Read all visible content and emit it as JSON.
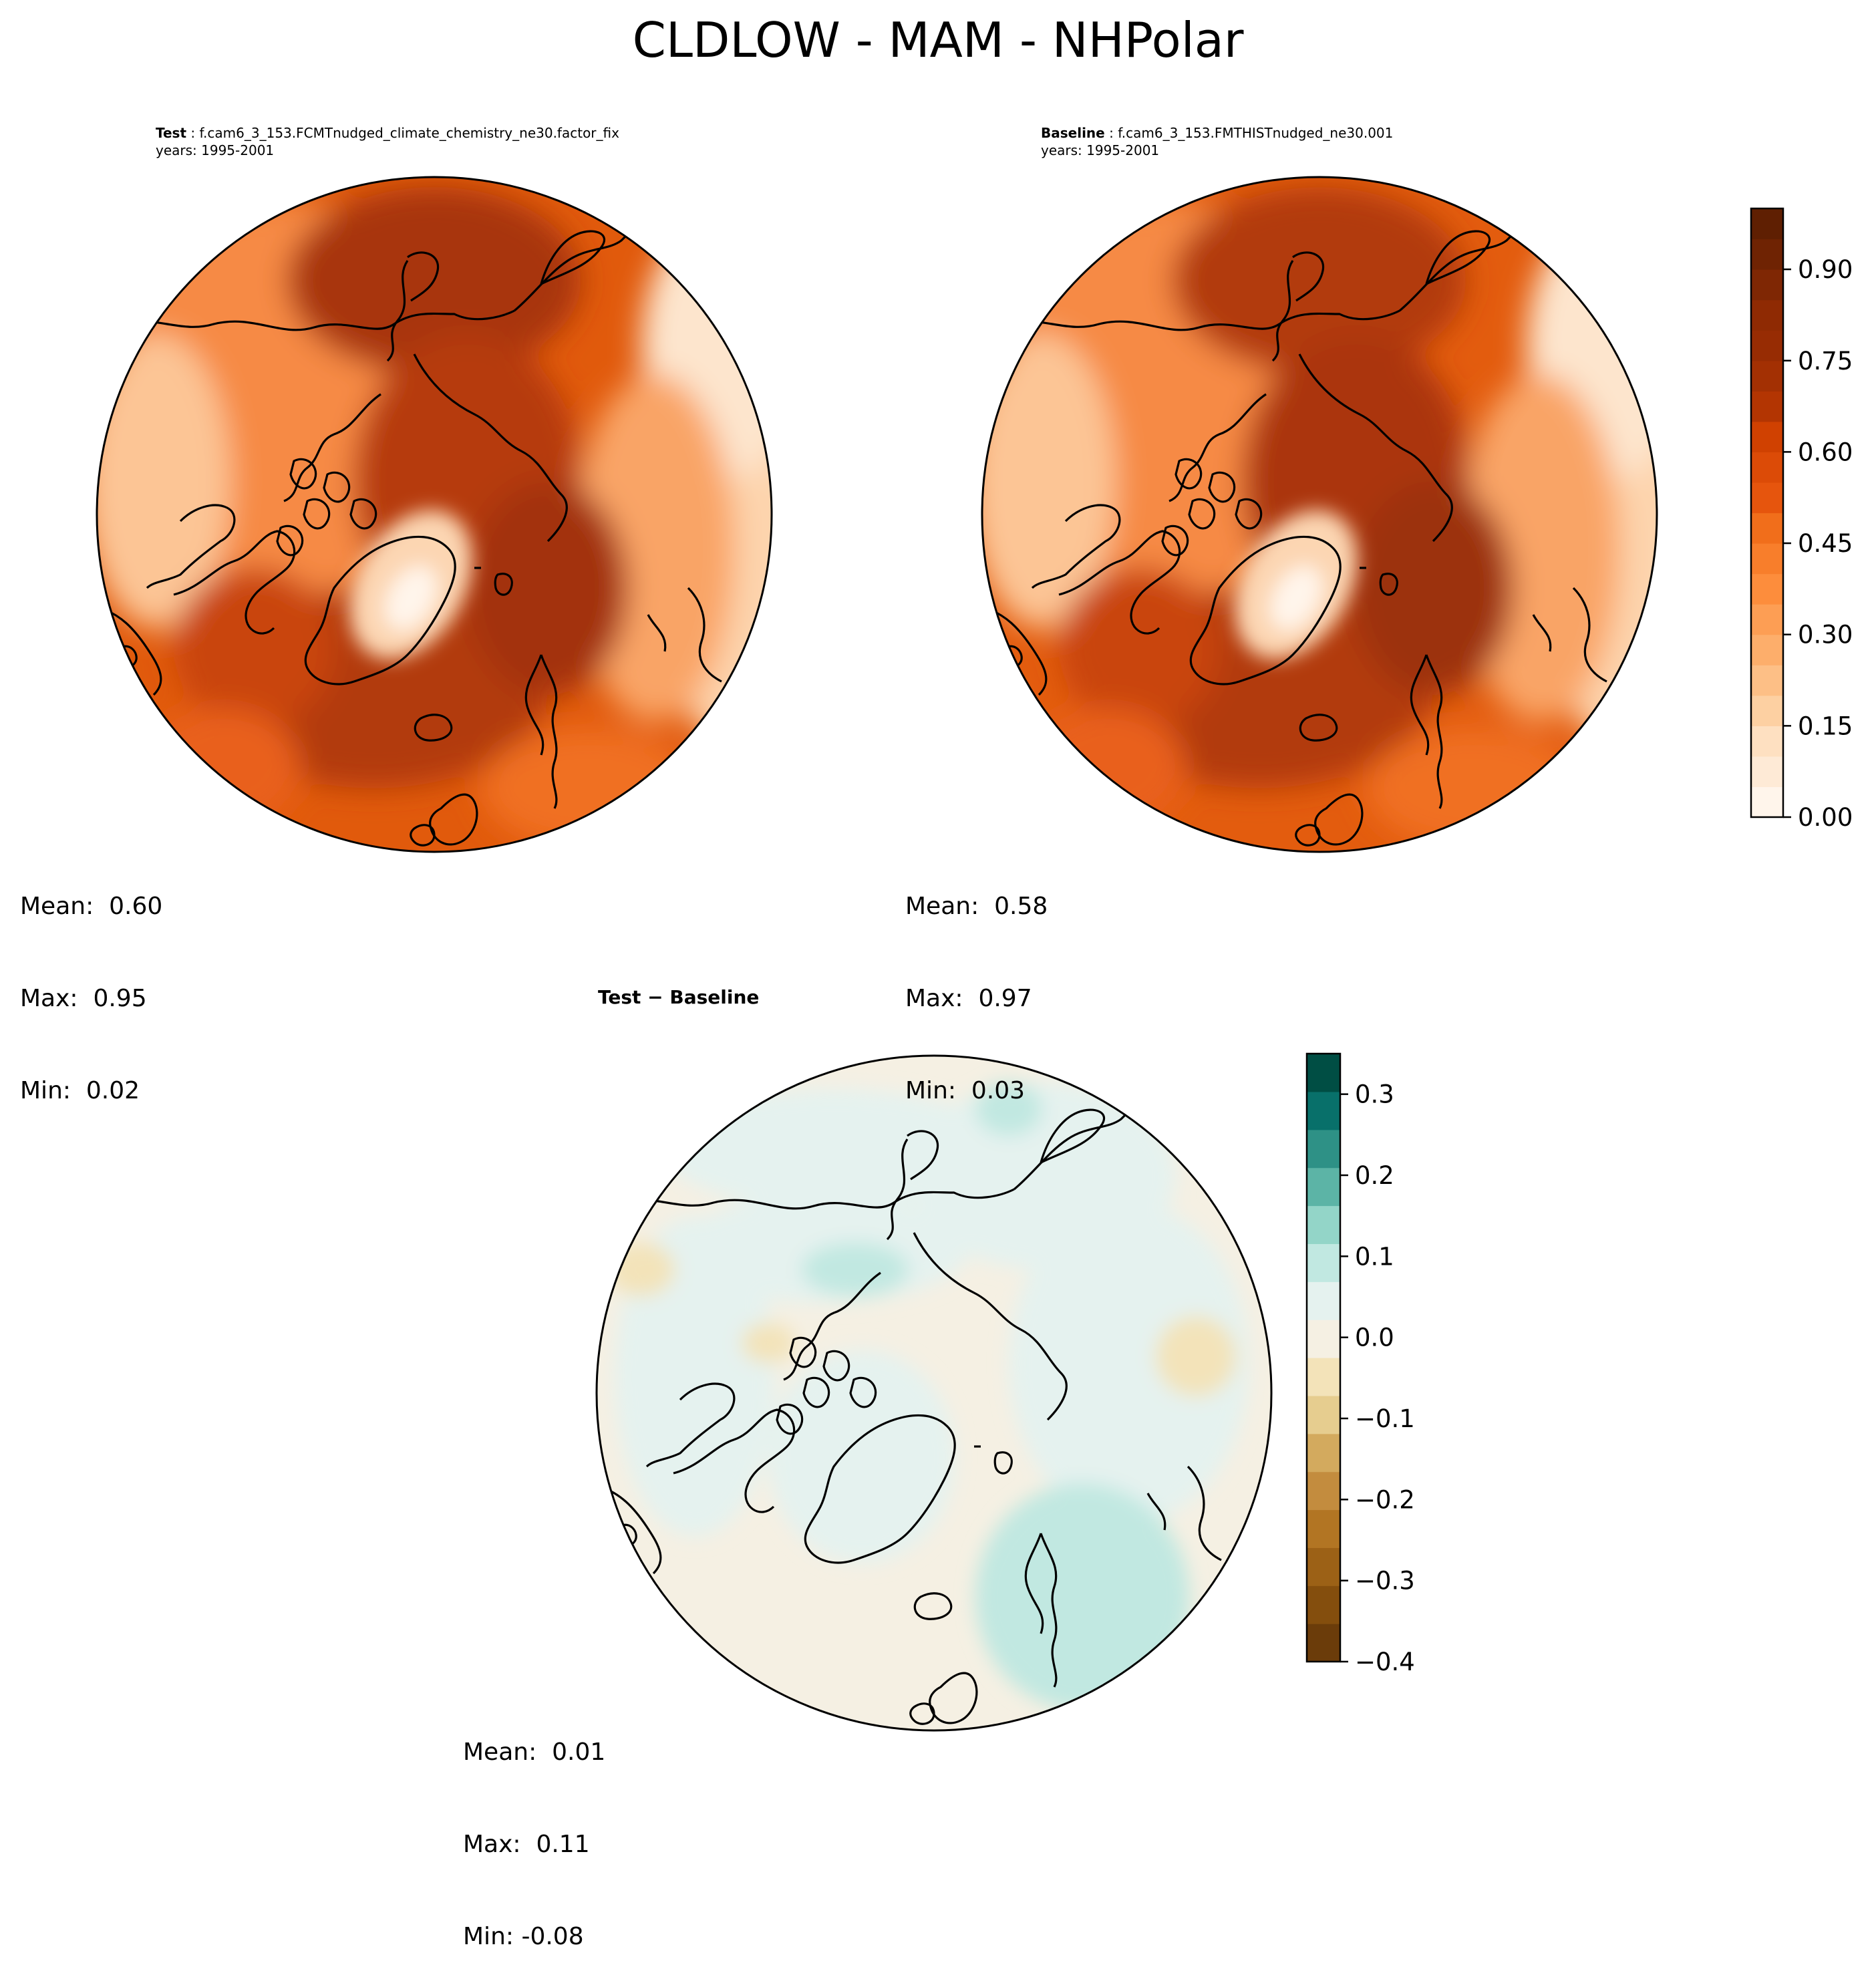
{
  "figure": {
    "title": "CLDLOW - MAM - NHPolar"
  },
  "panels": {
    "test": {
      "label": "Test",
      "case": "f.cam6_3_153.FCMTnudged_climate_chemistry_ne30.factor_fix",
      "years": "years: 1995-2001",
      "stats": {
        "mean": "Mean:  0.60",
        "max": "Max:  0.95",
        "min": "Min:  0.02"
      }
    },
    "baseline": {
      "label": "Baseline",
      "case": "f.cam6_3_153.FMTHISTnudged_ne30.001",
      "years": "years: 1995-2001",
      "stats": {
        "mean": "Mean:  0.58",
        "max": "Max:  0.97",
        "min": "Min:  0.03"
      }
    },
    "diff": {
      "title": "Test − Baseline",
      "stats": {
        "mean": "Mean:  0.01",
        "max": "Max:  0.11",
        "min": "Min: -0.08"
      }
    }
  },
  "chart_data": [
    {
      "type": "heatmap",
      "projection": "north-polar-stereographic",
      "panel": "test",
      "colormap": "oranges",
      "vmin": 0.0,
      "vmax": 1.0,
      "mean": 0.6,
      "max": 0.95,
      "min": 0.02
    },
    {
      "type": "heatmap",
      "projection": "north-polar-stereographic",
      "panel": "baseline",
      "colormap": "oranges",
      "vmin": 0.0,
      "vmax": 1.0,
      "mean": 0.58,
      "max": 0.97,
      "min": 0.03
    },
    {
      "type": "heatmap",
      "projection": "north-polar-stereographic",
      "panel": "diff",
      "colormap": "brown-teal diverging",
      "vmin": -0.4,
      "vmax": 0.35,
      "mean": 0.01,
      "max": 0.11,
      "min": -0.08
    }
  ],
  "colorbars": {
    "main": {
      "ticks": [
        "0.00",
        "0.15",
        "0.30",
        "0.45",
        "0.60",
        "0.75",
        "0.90"
      ],
      "tick_values": [
        0.0,
        0.15,
        0.3,
        0.45,
        0.6,
        0.75,
        0.9
      ],
      "range": [
        0.0,
        1.0
      ],
      "colors": [
        "#fff5eb",
        "#feead6",
        "#fee0c1",
        "#fdd0a2",
        "#fdbf86",
        "#fdae6b",
        "#fd9e54",
        "#fd8d3c",
        "#f87e2b",
        "#f16e1b",
        "#e6550d",
        "#dc4b07",
        "#d04101",
        "#b33502",
        "#a33003",
        "#972c03",
        "#8f2a03",
        "#7f2704",
        "#6f2303",
        "#5f1f02"
      ]
    },
    "diff": {
      "ticks": [
        "−0.4",
        "−0.3",
        "−0.2",
        "−0.1",
        "0.0",
        "0.1",
        "0.2",
        "0.3"
      ],
      "tick_values": [
        -0.4,
        -0.3,
        -0.2,
        -0.1,
        0.0,
        0.1,
        0.2,
        0.3
      ],
      "range": [
        -0.4,
        0.35
      ],
      "colors": [
        "#6b3c0a",
        "#844e0d",
        "#9c6116",
        "#b27523",
        "#c38c3e",
        "#d3aa5e",
        "#e6cd8f",
        "#f3e3b9",
        "#f5f0e3",
        "#e5f2ef",
        "#c1e8e1",
        "#93d5c8",
        "#5cb4a6",
        "#2e9186",
        "#08706a",
        "#004e44"
      ]
    }
  }
}
